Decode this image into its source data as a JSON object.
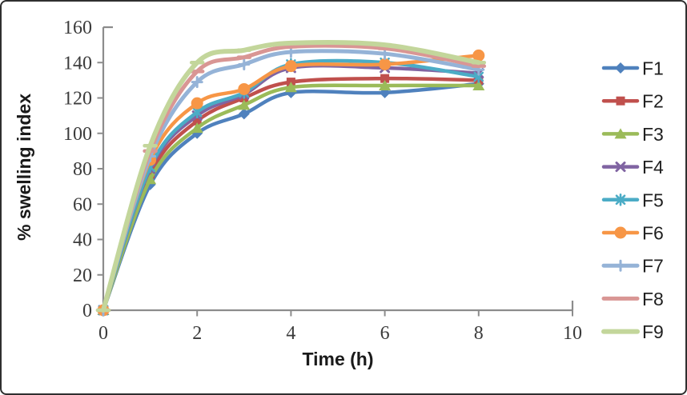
{
  "frame": {
    "background": "#ffffff",
    "border_color": "#2f2f2f"
  },
  "chart_data": {
    "type": "line",
    "title": "",
    "xlabel": "Time (h)",
    "ylabel": "% swelling index",
    "x": [
      0,
      1,
      2,
      3,
      4,
      6,
      8
    ],
    "xlim": [
      0,
      10
    ],
    "ylim": [
      0,
      160
    ],
    "x_ticks": [
      0,
      2,
      4,
      6,
      8,
      10
    ],
    "y_ticks": [
      0,
      20,
      40,
      60,
      80,
      100,
      120,
      140,
      160
    ],
    "grid": false,
    "legend_position": "right",
    "line_style": "smooth",
    "axis_color": "#8c8c8c",
    "tick_label_color": "#3b3b3b",
    "series": [
      {
        "name": "F1",
        "color": "#4F81BD",
        "marker": "diamond",
        "line_width": 4.5,
        "values": [
          0,
          71,
          100,
          111,
          123,
          123,
          128
        ]
      },
      {
        "name": "F2",
        "color": "#C0504D",
        "marker": "square",
        "line_width": 4.5,
        "values": [
          0,
          77,
          107,
          120,
          129,
          131,
          130
        ]
      },
      {
        "name": "F3",
        "color": "#9BBB59",
        "marker": "triangle",
        "line_width": 4.5,
        "values": [
          0,
          74,
          103,
          116,
          126,
          127,
          127
        ]
      },
      {
        "name": "F4",
        "color": "#8064A2",
        "marker": "x",
        "line_width": 4.5,
        "values": [
          0,
          80,
          110,
          122,
          137,
          137,
          134
        ]
      },
      {
        "name": "F5",
        "color": "#4BACC6",
        "marker": "star",
        "line_width": 4.5,
        "values": [
          0,
          81,
          112,
          123,
          139,
          140,
          132
        ]
      },
      {
        "name": "F6",
        "color": "#F79646",
        "marker": "circle",
        "line_width": 4.5,
        "values": [
          0,
          85,
          117,
          125,
          138,
          139,
          144
        ]
      },
      {
        "name": "F7",
        "color": "#95B3D7",
        "marker": "plus",
        "line_width": 5,
        "values": [
          0,
          87,
          129,
          139,
          146,
          145,
          136
        ]
      },
      {
        "name": "F8",
        "color": "#D99694",
        "marker": "dash",
        "line_width": 5,
        "values": [
          0,
          90,
          135,
          143,
          149,
          148,
          138
        ]
      },
      {
        "name": "F9",
        "color": "#C3D69B",
        "marker": "dash",
        "line_width": 6,
        "values": [
          0,
          93,
          140,
          147,
          151,
          150,
          140
        ]
      }
    ]
  }
}
